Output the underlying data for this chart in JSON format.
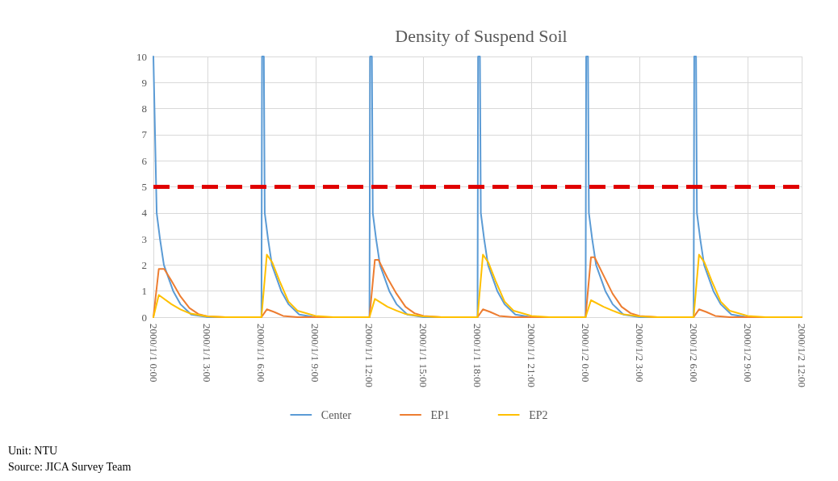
{
  "chart_data": {
    "type": "line",
    "title": "Density of Suspend Soil",
    "annotations": [
      "Unit: NTU",
      "Source: JICA Survey Team"
    ],
    "xlim": [
      "2000-01-01T00:00",
      "2000-01-02T12:00"
    ],
    "xticks": [
      {
        "value": "2000-01-01T00:00",
        "label": "2000/1/1 0:00"
      },
      {
        "value": "2000-01-01T03:00",
        "label": "2000/1/1 3:00"
      },
      {
        "value": "2000-01-01T06:00",
        "label": "2000/1/1 6:00"
      },
      {
        "value": "2000-01-01T09:00",
        "label": "2000/1/1 9:00"
      },
      {
        "value": "2000-01-01T12:00",
        "label": "2000/1/1 12:00"
      },
      {
        "value": "2000-01-01T15:00",
        "label": "2000/1/1 15:00"
      },
      {
        "value": "2000-01-01T18:00",
        "label": "2000/1/1 18:00"
      },
      {
        "value": "2000-01-01T21:00",
        "label": "2000/1/1 21:00"
      },
      {
        "value": "2000-01-02T00:00",
        "label": "2000/1/2 0:00"
      },
      {
        "value": "2000-01-02T03:00",
        "label": "2000/1/2 3:00"
      },
      {
        "value": "2000-01-02T06:00",
        "label": "2000/1/2 6:00"
      },
      {
        "value": "2000-01-02T09:00",
        "label": "2000/1/2 9:00"
      },
      {
        "value": "2000-01-02T12:00",
        "label": "2000/1/2 12:00"
      }
    ],
    "ylim": [
      0,
      10
    ],
    "yticks": [
      0,
      1,
      2,
      3,
      4,
      5,
      6,
      7,
      8,
      9,
      10
    ],
    "grid": true,
    "legend": "bottom",
    "ref_lines": [
      {
        "axis": "y",
        "value": 5,
        "color": "#e00000",
        "line_style": "dashed"
      }
    ],
    "series": [
      {
        "name": "Center",
        "color": "#5b9bd5",
        "x": [
          "2000-01-01T00:00",
          "2000-01-01T00:11",
          "2000-01-01T00:22",
          "2000-01-01T00:35",
          "2000-01-01T01:06",
          "2000-01-01T01:30",
          "2000-01-01T02:06",
          "2000-01-01T03:00",
          "2000-01-01T06:00",
          "2000-01-01T06:02",
          "2000-01-01T06:08",
          "2000-01-01T06:11",
          "2000-01-01T06:22",
          "2000-01-01T06:35",
          "2000-01-01T07:06",
          "2000-01-01T07:30",
          "2000-01-01T08:06",
          "2000-01-01T09:00",
          "2000-01-01T12:00",
          "2000-01-01T12:02",
          "2000-01-01T12:08",
          "2000-01-01T12:11",
          "2000-01-01T12:22",
          "2000-01-01T12:35",
          "2000-01-01T13:06",
          "2000-01-01T13:30",
          "2000-01-01T14:06",
          "2000-01-01T15:00",
          "2000-01-01T18:00",
          "2000-01-01T18:02",
          "2000-01-01T18:08",
          "2000-01-01T18:11",
          "2000-01-01T18:22",
          "2000-01-01T18:35",
          "2000-01-01T19:06",
          "2000-01-01T19:30",
          "2000-01-01T20:06",
          "2000-01-01T21:00",
          "2000-01-02T00:00",
          "2000-01-02T00:02",
          "2000-01-02T00:08",
          "2000-01-02T00:11",
          "2000-01-02T00:22",
          "2000-01-02T00:35",
          "2000-01-02T01:06",
          "2000-01-02T01:30",
          "2000-01-02T02:06",
          "2000-01-02T03:00",
          "2000-01-02T06:00",
          "2000-01-02T06:02",
          "2000-01-02T06:08",
          "2000-01-02T06:11",
          "2000-01-02T06:22",
          "2000-01-02T06:35",
          "2000-01-02T07:06",
          "2000-01-02T07:30",
          "2000-01-02T08:06",
          "2000-01-02T09:00",
          "2000-01-02T12:00"
        ],
        "values": [
          10,
          4,
          3,
          2,
          1,
          0.5,
          0.1,
          0,
          0,
          10,
          10,
          4,
          3,
          2,
          1,
          0.5,
          0.1,
          0,
          0,
          10,
          10,
          4,
          3,
          2,
          1,
          0.5,
          0.1,
          0,
          0,
          10,
          10,
          4,
          3,
          2,
          1,
          0.5,
          0.1,
          0,
          0,
          10,
          10,
          4,
          3,
          2,
          1,
          0.5,
          0.1,
          0,
          0,
          10,
          10,
          4,
          3,
          2,
          1,
          0.5,
          0.1,
          0,
          0
        ]
      },
      {
        "name": "EP1",
        "color": "#ed7d31",
        "x": [
          "2000-01-01T00:00",
          "2000-01-01T00:18",
          "2000-01-01T00:36",
          "2000-01-01T01:00",
          "2000-01-01T01:30",
          "2000-01-01T02:00",
          "2000-01-01T02:30",
          "2000-01-01T03:00",
          "2000-01-01T04:00",
          "2000-01-01T06:00",
          "2000-01-01T06:18",
          "2000-01-01T06:42",
          "2000-01-01T07:12",
          "2000-01-01T08:00",
          "2000-01-01T12:00",
          "2000-01-01T12:18",
          "2000-01-01T12:30",
          "2000-01-01T13:00",
          "2000-01-01T13:30",
          "2000-01-01T14:00",
          "2000-01-01T14:30",
          "2000-01-01T15:00",
          "2000-01-01T16:00",
          "2000-01-01T18:00",
          "2000-01-01T18:18",
          "2000-01-01T18:42",
          "2000-01-01T19:12",
          "2000-01-01T20:00",
          "2000-01-02T00:00",
          "2000-01-02T00:18",
          "2000-01-02T00:30",
          "2000-01-02T01:00",
          "2000-01-02T01:30",
          "2000-01-02T02:00",
          "2000-01-02T02:30",
          "2000-01-02T03:00",
          "2000-01-02T04:00",
          "2000-01-02T06:00",
          "2000-01-02T06:18",
          "2000-01-02T06:42",
          "2000-01-02T07:12",
          "2000-01-02T08:00",
          "2000-01-02T12:00"
        ],
        "values": [
          0,
          1.85,
          1.85,
          1.4,
          0.8,
          0.35,
          0.12,
          0.03,
          0,
          0,
          0.3,
          0.2,
          0.05,
          0,
          0,
          2.2,
          2.2,
          1.5,
          0.9,
          0.4,
          0.15,
          0.05,
          0,
          0,
          0.3,
          0.2,
          0.05,
          0,
          0,
          2.3,
          2.3,
          1.6,
          0.9,
          0.4,
          0.15,
          0.05,
          0,
          0,
          0.3,
          0.2,
          0.05,
          0,
          0
        ]
      },
      {
        "name": "EP2",
        "color": "#ffc000",
        "x": [
          "2000-01-01T00:00",
          "2000-01-01T00:18",
          "2000-01-01T01:00",
          "2000-01-01T01:30",
          "2000-01-01T02:00",
          "2000-01-01T03:00",
          "2000-01-01T04:00",
          "2000-01-01T06:00",
          "2000-01-01T06:18",
          "2000-01-01T06:36",
          "2000-01-01T07:00",
          "2000-01-01T07:30",
          "2000-01-01T08:00",
          "2000-01-01T09:00",
          "2000-01-01T10:00",
          "2000-01-01T12:00",
          "2000-01-01T12:18",
          "2000-01-01T13:00",
          "2000-01-01T13:30",
          "2000-01-01T14:00",
          "2000-01-01T15:00",
          "2000-01-01T16:00",
          "2000-01-01T18:00",
          "2000-01-01T18:18",
          "2000-01-01T18:36",
          "2000-01-01T19:00",
          "2000-01-01T19:30",
          "2000-01-01T20:00",
          "2000-01-01T21:00",
          "2000-01-01T22:00",
          "2000-01-02T00:00",
          "2000-01-02T00:18",
          "2000-01-02T01:00",
          "2000-01-02T01:30",
          "2000-01-02T02:00",
          "2000-01-02T03:00",
          "2000-01-02T04:00",
          "2000-01-02T06:00",
          "2000-01-02T06:18",
          "2000-01-02T06:36",
          "2000-01-02T07:00",
          "2000-01-02T07:30",
          "2000-01-02T08:00",
          "2000-01-02T09:00",
          "2000-01-02T10:00",
          "2000-01-02T12:00"
        ],
        "values": [
          0,
          0.85,
          0.5,
          0.3,
          0.15,
          0.03,
          0,
          0,
          2.4,
          2.1,
          1.4,
          0.6,
          0.25,
          0.05,
          0,
          0,
          0.7,
          0.4,
          0.25,
          0.12,
          0.03,
          0,
          0,
          2.4,
          2.1,
          1.4,
          0.6,
          0.25,
          0.05,
          0,
          0,
          0.65,
          0.4,
          0.25,
          0.12,
          0.03,
          0,
          0,
          2.4,
          2.1,
          1.4,
          0.6,
          0.25,
          0.05,
          0,
          0
        ]
      }
    ]
  }
}
